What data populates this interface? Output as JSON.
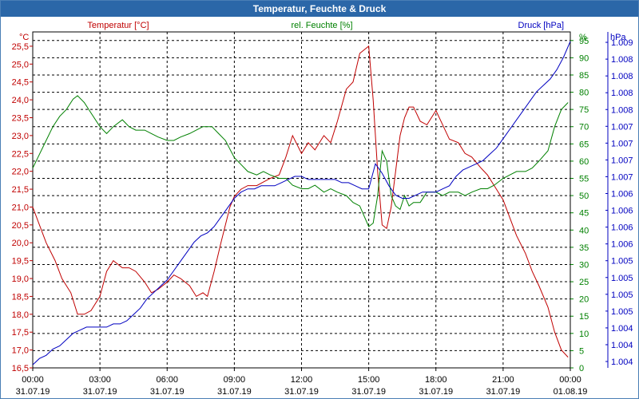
{
  "chart_data": {
    "type": "line",
    "title": "Temperatur, Feuchte & Druck",
    "x_ticks": [
      {
        "h": 0,
        "time": "00:00",
        "date": "31.07.19"
      },
      {
        "h": 3,
        "time": "03:00",
        "date": "31.07.19"
      },
      {
        "h": 6,
        "time": "06:00",
        "date": "31.07.19"
      },
      {
        "h": 9,
        "time": "09:00",
        "date": "31.07.19"
      },
      {
        "h": 12,
        "time": "12:00",
        "date": "31.07.19"
      },
      {
        "h": 15,
        "time": "15:00",
        "date": "31.07.19"
      },
      {
        "h": 18,
        "time": "18:00",
        "date": "31.07.19"
      },
      {
        "h": 21,
        "time": "21:00",
        "date": "31.07.19"
      },
      {
        "h": 24,
        "time": "00:00",
        "date": "01.08.19"
      }
    ],
    "xlim": [
      0,
      24
    ],
    "axes": {
      "temp": {
        "unit": "°C",
        "color": "#c00000",
        "ylim": [
          16.5,
          25.9
        ],
        "ticks": [
          "16,5",
          "17,0",
          "17,5",
          "18,0",
          "18,5",
          "19,0",
          "19,5",
          "20,0",
          "20,5",
          "21,0",
          "21,5",
          "22,0",
          "22,5",
          "23,0",
          "23,5",
          "24,0",
          "24,5",
          "25,0",
          "25,5"
        ]
      },
      "hum": {
        "unit": "%",
        "color": "#008000",
        "ylim": [
          0,
          97.5
        ],
        "ticks": [
          "0",
          "5",
          "10",
          "15",
          "20",
          "25",
          "30",
          "35",
          "40",
          "45",
          "50",
          "55",
          "60",
          "65",
          "70",
          "75",
          "80",
          "85",
          "90",
          "95"
        ]
      },
      "press": {
        "unit": "hPa",
        "color": "#0000c0",
        "ylim": [
          1003.8,
          1009.15
        ],
        "ticks": [
          "1.004",
          "1.004",
          "1.004",
          "1.005",
          "1.005",
          "1.005",
          "1.005",
          "1.006",
          "1.006",
          "1.006",
          "1.006",
          "1.007",
          "1.007",
          "1.007",
          "1.007",
          "1.008",
          "1.008",
          "1.008",
          "1.008",
          "1.009"
        ]
      }
    },
    "series": [
      {
        "name": "Temperatur [°C]",
        "axis": "temp",
        "color": "#c00000",
        "x": [
          0,
          0.3,
          0.6,
          1.0,
          1.3,
          1.7,
          2.0,
          2.3,
          2.6,
          3.0,
          3.3,
          3.6,
          4.0,
          4.3,
          4.6,
          5.0,
          5.3,
          5.6,
          6.0,
          6.3,
          6.6,
          7.0,
          7.3,
          7.6,
          7.8,
          8.1,
          8.4,
          8.8,
          9.0,
          9.3,
          9.6,
          10.0,
          10.3,
          10.6,
          11.0,
          11.3,
          11.6,
          12.0,
          12.3,
          12.6,
          13.0,
          13.3,
          13.6,
          14.0,
          14.3,
          14.6,
          15.0,
          15.2,
          15.4,
          15.6,
          15.8,
          16.0,
          16.2,
          16.4,
          16.6,
          16.8,
          17.0,
          17.3,
          17.6,
          18.0,
          18.3,
          18.6,
          19.0,
          19.3,
          19.6,
          20.0,
          20.3,
          20.6,
          21.0,
          21.3,
          21.6,
          22.0,
          22.3,
          22.6,
          23.0,
          23.3,
          23.6,
          23.9
        ],
        "y": [
          21.0,
          20.5,
          20.0,
          19.5,
          19.0,
          18.6,
          18.0,
          18.0,
          18.1,
          18.5,
          19.2,
          19.5,
          19.3,
          19.3,
          19.2,
          18.9,
          18.6,
          18.7,
          18.9,
          19.1,
          19.0,
          18.8,
          18.5,
          18.6,
          18.5,
          19.2,
          20.0,
          21.0,
          21.3,
          21.5,
          21.6,
          21.6,
          21.7,
          21.8,
          21.9,
          22.4,
          23.0,
          22.5,
          22.8,
          22.6,
          23.0,
          22.8,
          23.4,
          24.3,
          24.5,
          25.3,
          25.5,
          24.0,
          22.0,
          20.5,
          20.4,
          21.0,
          22.0,
          23.0,
          23.5,
          23.8,
          23.8,
          23.4,
          23.3,
          23.7,
          23.3,
          22.9,
          22.8,
          22.5,
          22.4,
          22.1,
          21.9,
          21.6,
          21.2,
          20.7,
          20.2,
          19.7,
          19.2,
          18.8,
          18.2,
          17.5,
          17.0,
          16.8
        ]
      },
      {
        "name": "rel. Feuchte [%]",
        "axis": "hum",
        "color": "#008000",
        "x": [
          0,
          0.3,
          0.6,
          0.9,
          1.2,
          1.5,
          1.8,
          2.0,
          2.3,
          2.6,
          3.0,
          3.3,
          3.6,
          4.0,
          4.3,
          4.6,
          5.0,
          5.3,
          5.6,
          6.0,
          6.3,
          6.6,
          7.0,
          7.3,
          7.6,
          8.0,
          8.3,
          8.6,
          9.0,
          9.3,
          9.6,
          10.0,
          10.3,
          10.6,
          11.0,
          11.3,
          11.6,
          12.0,
          12.3,
          12.6,
          13.0,
          13.3,
          13.6,
          14.0,
          14.3,
          14.6,
          15.0,
          15.2,
          15.4,
          15.6,
          15.8,
          16.0,
          16.2,
          16.4,
          16.6,
          16.8,
          17.0,
          17.3,
          17.6,
          18.0,
          18.3,
          18.6,
          19.0,
          19.3,
          19.6,
          20.0,
          20.3,
          20.6,
          21.0,
          21.3,
          21.6,
          22.0,
          22.3,
          22.6,
          23.0,
          23.3,
          23.6,
          23.9
        ],
        "y": [
          58,
          62,
          66,
          70,
          73,
          75,
          78,
          79,
          77,
          74,
          70,
          68,
          70,
          72,
          70,
          69,
          69,
          68,
          67,
          66,
          66,
          67,
          68,
          69,
          70,
          70,
          68,
          66,
          61,
          59,
          57,
          56,
          57,
          56,
          55,
          55,
          53,
          52,
          52,
          53,
          51,
          52,
          51,
          50,
          48,
          47,
          41,
          42,
          50,
          63,
          60,
          50,
          47,
          46,
          50,
          47,
          48,
          48,
          51,
          51,
          50,
          51,
          51,
          50,
          51,
          52,
          52,
          53,
          55,
          56,
          57,
          57,
          58,
          60,
          63,
          70,
          75,
          77
        ]
      },
      {
        "name": "Druck [hPa]",
        "axis": "press",
        "color": "#0000c0",
        "x": [
          0,
          0.3,
          0.6,
          0.9,
          1.2,
          1.5,
          1.8,
          2.1,
          2.4,
          2.7,
          3.0,
          3.3,
          3.6,
          3.9,
          4.2,
          4.5,
          4.8,
          5.1,
          5.4,
          5.7,
          6.0,
          6.3,
          6.6,
          6.9,
          7.2,
          7.5,
          7.8,
          8.1,
          8.4,
          8.7,
          9.0,
          9.3,
          9.6,
          9.9,
          10.2,
          10.5,
          10.8,
          11.1,
          11.4,
          11.7,
          12.0,
          12.3,
          12.6,
          12.9,
          13.2,
          13.5,
          13.8,
          14.1,
          14.4,
          14.7,
          15.0,
          15.3,
          15.6,
          15.9,
          16.2,
          16.5,
          16.8,
          17.1,
          17.4,
          17.7,
          18.0,
          18.3,
          18.6,
          18.9,
          19.2,
          19.5,
          19.8,
          20.1,
          20.4,
          20.7,
          21.0,
          21.3,
          21.6,
          21.9,
          22.2,
          22.5,
          22.8,
          23.1,
          23.4,
          23.7,
          24.0
        ],
        "y": [
          1003.85,
          1003.95,
          1004.0,
          1004.1,
          1004.15,
          1004.25,
          1004.35,
          1004.4,
          1004.45,
          1004.45,
          1004.45,
          1004.45,
          1004.5,
          1004.5,
          1004.55,
          1004.65,
          1004.75,
          1004.9,
          1005.0,
          1005.1,
          1005.2,
          1005.35,
          1005.5,
          1005.65,
          1005.8,
          1005.9,
          1005.95,
          1006.05,
          1006.2,
          1006.35,
          1006.5,
          1006.6,
          1006.65,
          1006.65,
          1006.7,
          1006.7,
          1006.7,
          1006.75,
          1006.8,
          1006.85,
          1006.85,
          1006.8,
          1006.8,
          1006.8,
          1006.8,
          1006.8,
          1006.75,
          1006.75,
          1006.7,
          1006.65,
          1006.65,
          1007.05,
          1006.9,
          1006.7,
          1006.55,
          1006.5,
          1006.5,
          1006.55,
          1006.6,
          1006.6,
          1006.6,
          1006.65,
          1006.7,
          1006.85,
          1006.95,
          1007.0,
          1007.05,
          1007.1,
          1007.2,
          1007.3,
          1007.45,
          1007.6,
          1007.75,
          1007.9,
          1008.05,
          1008.2,
          1008.3,
          1008.4,
          1008.55,
          1008.75,
          1009.0
        ]
      }
    ]
  }
}
